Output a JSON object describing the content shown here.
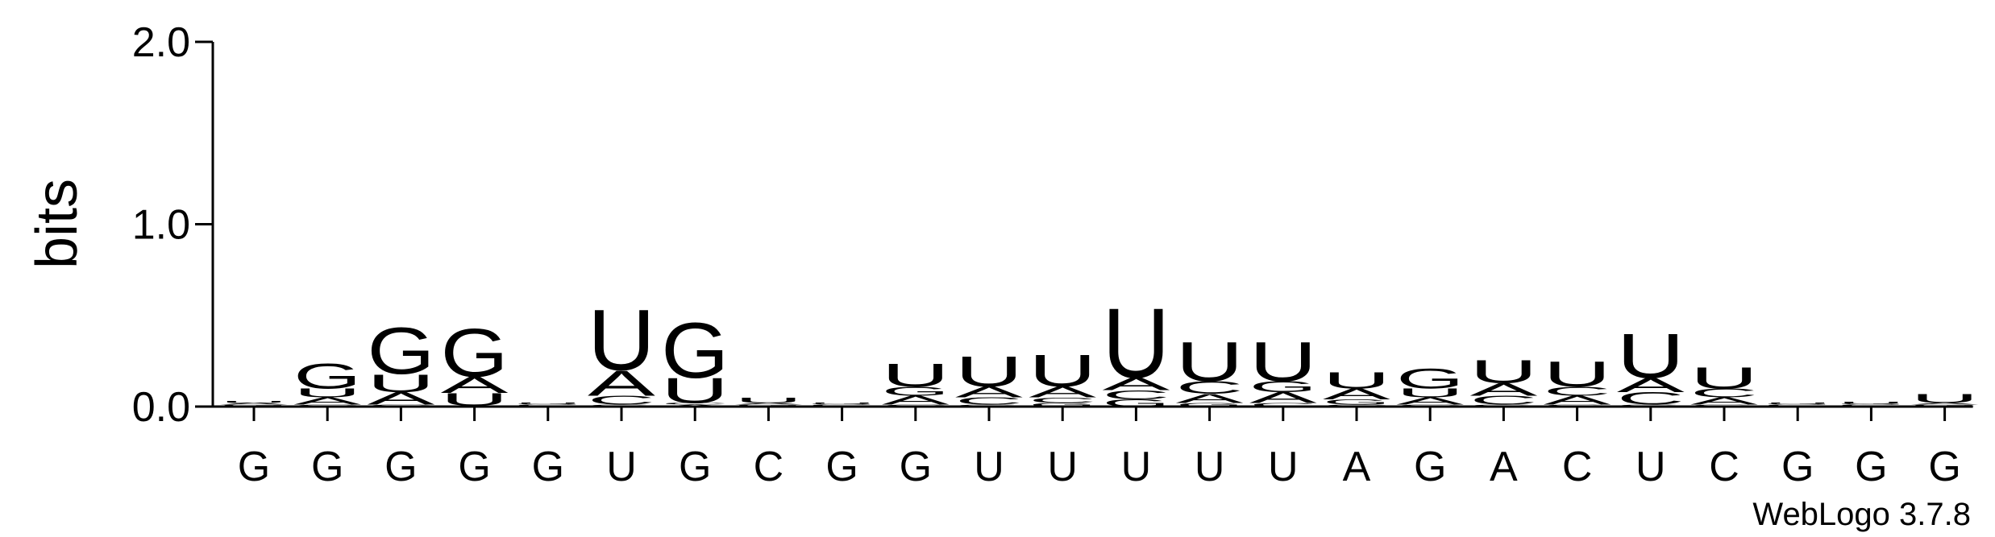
{
  "chart_data": {
    "type": "logo",
    "y_label": "bits",
    "annotation": "WebLogo 3.7.8",
    "categories": [
      "G",
      "G",
      "G",
      "G",
      "G",
      "U",
      "G",
      "C",
      "G",
      "G",
      "U",
      "U",
      "U",
      "U",
      "U",
      "A",
      "G",
      "A",
      "C",
      "U",
      "C",
      "G",
      "G",
      "G"
    ],
    "ylim": [
      0,
      2
    ],
    "yticks": [
      {
        "value": 0,
        "label": "0.0"
      },
      {
        "value": 1,
        "label": "1.0"
      },
      {
        "value": 2,
        "label": "2.0"
      }
    ],
    "series": [
      {
        "name": "A",
        "color": "#ff8c00",
        "values": [
          0.01,
          0.04,
          0.07,
          0.09,
          0.005,
          0.14,
          0.01,
          0.01,
          0.005,
          0.05,
          0.06,
          0.06,
          0.07,
          0.05,
          0.06,
          0.06,
          0.04,
          0.07,
          0.05,
          0.08,
          0.04,
          0.005,
          0.005,
          0.01
        ]
      },
      {
        "name": "C",
        "color": "#0000ff",
        "values": [
          0.005,
          0.01,
          0.01,
          0.005,
          0.005,
          0.05,
          0.01,
          0.005,
          0.005,
          0.01,
          0.04,
          0.03,
          0.05,
          0.07,
          0.02,
          0.01,
          0.01,
          0.05,
          0.05,
          0.07,
          0.05,
          0.005,
          0.005,
          0.005
        ]
      },
      {
        "name": "G",
        "color": "#0000ff",
        "values": [
          0.005,
          0.14,
          0.26,
          0.27,
          0.005,
          0.01,
          0.31,
          0.005,
          0.005,
          0.05,
          0.01,
          0.02,
          0.04,
          0.02,
          0.06,
          0.03,
          0.11,
          0.01,
          0.01,
          0.01,
          0.01,
          0.005,
          0.005,
          0.005
        ]
      },
      {
        "name": "U",
        "color": "#ff8c00",
        "values": [
          0.01,
          0.05,
          0.1,
          0.07,
          0.005,
          0.34,
          0.14,
          0.03,
          0.005,
          0.13,
          0.17,
          0.18,
          0.39,
          0.22,
          0.22,
          0.09,
          0.05,
          0.13,
          0.14,
          0.25,
          0.12,
          0.005,
          0.01,
          0.05
        ]
      }
    ]
  }
}
